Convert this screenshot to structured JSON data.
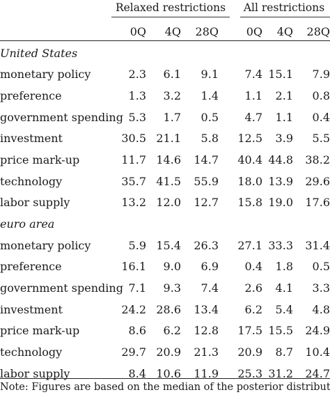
{
  "table": {
    "group_headers": [
      "Relaxed restrictions",
      "All restrictions"
    ],
    "column_headers": [
      "0Q",
      "4Q",
      "28Q",
      "0Q",
      "4Q",
      "28Q"
    ],
    "sections": [
      {
        "title": "United States",
        "rows": [
          {
            "label": "monetary policy",
            "values": [
              "2.3",
              "6.1",
              "9.1",
              "7.4",
              "15.1",
              "7.9"
            ]
          },
          {
            "label": "preference",
            "values": [
              "1.3",
              "3.2",
              "1.4",
              "1.1",
              "2.1",
              "0.8"
            ]
          },
          {
            "label": "government spending",
            "values": [
              "5.3",
              "1.7",
              "0.5",
              "4.7",
              "1.1",
              "0.4"
            ]
          },
          {
            "label": "investment",
            "values": [
              "30.5",
              "21.1",
              "5.8",
              "12.5",
              "3.9",
              "5.5"
            ]
          },
          {
            "label": "price mark-up",
            "values": [
              "11.7",
              "14.6",
              "14.7",
              "40.4",
              "44.8",
              "38.2"
            ]
          },
          {
            "label": "technology",
            "values": [
              "35.7",
              "41.5",
              "55.9",
              "18.0",
              "13.9",
              "29.6"
            ]
          },
          {
            "label": "labor supply",
            "values": [
              "13.2",
              "12.0",
              "12.7",
              "15.8",
              "19.0",
              "17.6"
            ]
          }
        ]
      },
      {
        "title": "euro area",
        "rows": [
          {
            "label": "monetary policy",
            "values": [
              "5.9",
              "15.4",
              "26.3",
              "27.1",
              "33.3",
              "31.4"
            ]
          },
          {
            "label": "preference",
            "values": [
              "16.1",
              "9.0",
              "6.9",
              "0.4",
              "1.8",
              "0.5"
            ]
          },
          {
            "label": "government spending",
            "values": [
              "7.1",
              "9.3",
              "7.4",
              "2.6",
              "4.1",
              "3.3"
            ]
          },
          {
            "label": "investment",
            "values": [
              "24.2",
              "28.6",
              "13.4",
              "6.2",
              "5.4",
              "4.8"
            ]
          },
          {
            "label": "price mark-up",
            "values": [
              "8.6",
              "6.2",
              "12.8",
              "17.5",
              "15.5",
              "24.9"
            ]
          },
          {
            "label": "technology",
            "values": [
              "29.7",
              "20.9",
              "21.3",
              "20.9",
              "8.7",
              "10.4"
            ]
          },
          {
            "label": "labor supply",
            "values": [
              "8.4",
              "10.6",
              "11.9",
              "25.3",
              "31.2",
              "24.7"
            ]
          }
        ]
      }
    ],
    "note": "Note: Figures are based on the median of the posterior distribution"
  }
}
